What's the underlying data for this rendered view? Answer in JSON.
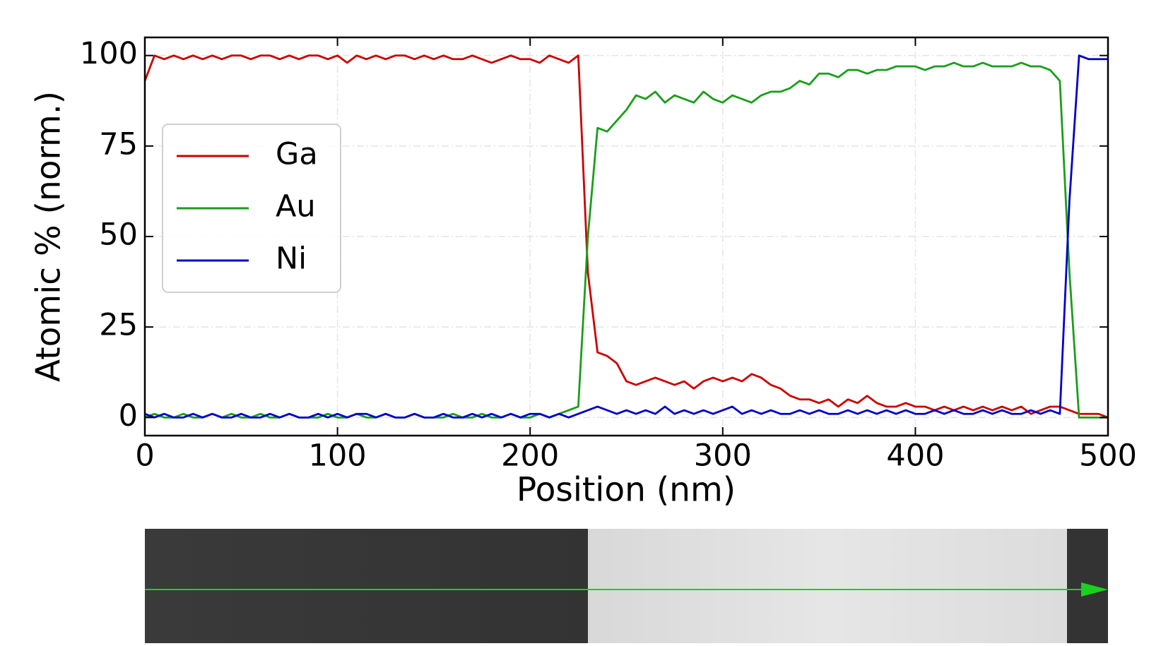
{
  "chart_data": {
    "type": "line",
    "xlabel": "Position (nm)",
    "ylabel": "Atomic % (norm.)",
    "x": [
      0,
      5,
      10,
      15,
      20,
      25,
      30,
      35,
      40,
      45,
      50,
      55,
      60,
      65,
      70,
      75,
      80,
      85,
      90,
      95,
      100,
      105,
      110,
      115,
      120,
      125,
      130,
      135,
      140,
      145,
      150,
      155,
      160,
      165,
      170,
      175,
      180,
      185,
      190,
      195,
      200,
      205,
      210,
      215,
      220,
      225,
      230,
      235,
      240,
      245,
      250,
      255,
      260,
      265,
      270,
      275,
      280,
      285,
      290,
      295,
      300,
      305,
      310,
      315,
      320,
      325,
      330,
      335,
      340,
      345,
      350,
      355,
      360,
      365,
      370,
      375,
      380,
      385,
      390,
      395,
      400,
      405,
      410,
      415,
      420,
      425,
      430,
      435,
      440,
      445,
      450,
      455,
      460,
      465,
      470,
      475,
      480,
      485,
      490,
      495,
      500
    ],
    "series": [
      {
        "name": "Ga",
        "color": "#cc0000",
        "values": [
          93,
          100,
          99,
          100,
          99,
          100,
          99,
          100,
          99,
          100,
          100,
          99,
          100,
          100,
          99,
          100,
          99,
          100,
          100,
          99,
          100,
          98,
          100,
          99,
          100,
          99,
          100,
          100,
          99,
          100,
          99,
          100,
          99,
          99,
          100,
          99,
          98,
          99,
          100,
          99,
          99,
          98,
          100,
          99,
          98,
          100,
          40,
          18,
          17,
          15,
          10,
          9,
          10,
          11,
          10,
          9,
          10,
          8,
          10,
          11,
          10,
          11,
          10,
          12,
          11,
          9,
          8,
          6,
          5,
          5,
          4,
          5,
          3,
          5,
          4,
          6,
          4,
          3,
          3,
          4,
          3,
          3,
          2,
          3,
          2,
          3,
          2,
          3,
          2,
          3,
          2,
          3,
          1,
          2,
          3,
          3,
          2,
          1,
          1,
          1,
          0
        ]
      },
      {
        "name": "Au",
        "color": "#1a9e1a",
        "values": [
          0,
          1,
          0,
          0,
          1,
          0,
          0,
          1,
          0,
          1,
          0,
          0,
          1,
          0,
          0,
          1,
          0,
          0,
          0,
          1,
          0,
          0,
          1,
          0,
          0,
          1,
          0,
          0,
          1,
          0,
          0,
          0,
          1,
          0,
          0,
          1,
          0,
          0,
          1,
          0,
          0,
          1,
          0,
          1,
          2,
          3,
          50,
          80,
          79,
          82,
          85,
          89,
          88,
          90,
          87,
          89,
          88,
          87,
          90,
          88,
          87,
          89,
          88,
          87,
          89,
          90,
          90,
          91,
          93,
          92,
          95,
          95,
          94,
          96,
          96,
          95,
          96,
          96,
          97,
          97,
          97,
          96,
          97,
          97,
          98,
          97,
          97,
          98,
          97,
          97,
          97,
          98,
          97,
          97,
          96,
          93,
          40,
          0,
          0,
          0,
          0
        ]
      },
      {
        "name": "Ni",
        "color": "#0000cc",
        "values": [
          1,
          0,
          1,
          0,
          0,
          1,
          0,
          1,
          0,
          0,
          1,
          0,
          0,
          1,
          0,
          1,
          0,
          0,
          1,
          0,
          1,
          0,
          1,
          1,
          0,
          1,
          0,
          0,
          1,
          0,
          0,
          1,
          0,
          0,
          1,
          0,
          1,
          0,
          1,
          0,
          1,
          1,
          0,
          1,
          0,
          1,
          2,
          3,
          2,
          1,
          2,
          1,
          2,
          1,
          3,
          1,
          2,
          1,
          2,
          1,
          2,
          3,
          1,
          2,
          1,
          2,
          1,
          1,
          2,
          1,
          2,
          1,
          1,
          2,
          1,
          2,
          1,
          2,
          1,
          2,
          1,
          1,
          2,
          1,
          2,
          1,
          1,
          2,
          1,
          2,
          1,
          1,
          2,
          1,
          2,
          1,
          60,
          100,
          99,
          99,
          99
        ]
      }
    ],
    "xlim": [
      0,
      500
    ],
    "xticks": [
      0,
      100,
      200,
      300,
      400,
      500
    ],
    "ylim": [
      -5,
      105
    ],
    "yticks": [
      0,
      25,
      50,
      75,
      100
    ],
    "grid": true,
    "legend": "center left"
  }
}
